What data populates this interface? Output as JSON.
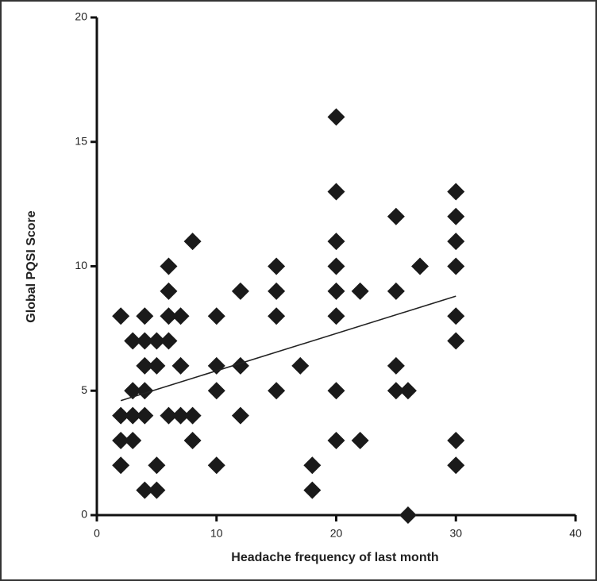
{
  "chart_data": {
    "type": "scatter",
    "x_label": "Headache frequency of last month",
    "y_label": "Global PQSI Score",
    "x": [
      2,
      2,
      2,
      2,
      3,
      3,
      3,
      3,
      4,
      4,
      4,
      4,
      4,
      4,
      5,
      5,
      5,
      5,
      6,
      6,
      6,
      6,
      6,
      7,
      7,
      7,
      8,
      8,
      8,
      10,
      10,
      10,
      10,
      12,
      12,
      12,
      15,
      15,
      15,
      15,
      17,
      18,
      18,
      20,
      20,
      20,
      20,
      20,
      20,
      20,
      20,
      22,
      22,
      25,
      25,
      25,
      25,
      26,
      26,
      27,
      30,
      30,
      30,
      30,
      30,
      30,
      30,
      30
    ],
    "y": [
      8,
      4,
      3,
      2,
      7,
      5,
      4,
      3,
      8,
      7,
      6,
      5,
      4,
      1,
      7,
      6,
      2,
      1,
      10,
      9,
      8,
      7,
      4,
      8,
      6,
      4,
      11,
      4,
      3,
      8,
      6,
      5,
      2,
      9,
      6,
      4,
      10,
      9,
      8,
      5,
      6,
      2,
      1,
      16,
      13,
      11,
      10,
      9,
      8,
      5,
      3,
      9,
      3,
      12,
      9,
      6,
      5,
      5,
      0,
      10,
      13,
      12,
      11,
      10,
      8,
      7,
      3,
      2
    ],
    "color": "#1a1a1a",
    "trendline": {
      "x": [
        2,
        30
      ],
      "y": [
        4.6,
        8.8
      ]
    },
    "xlim": [
      0,
      40
    ],
    "xticks": [
      0,
      10,
      20,
      30,
      40
    ],
    "ylim": [
      0,
      20
    ],
    "yticks": [
      0,
      5,
      10,
      15,
      20
    ]
  }
}
